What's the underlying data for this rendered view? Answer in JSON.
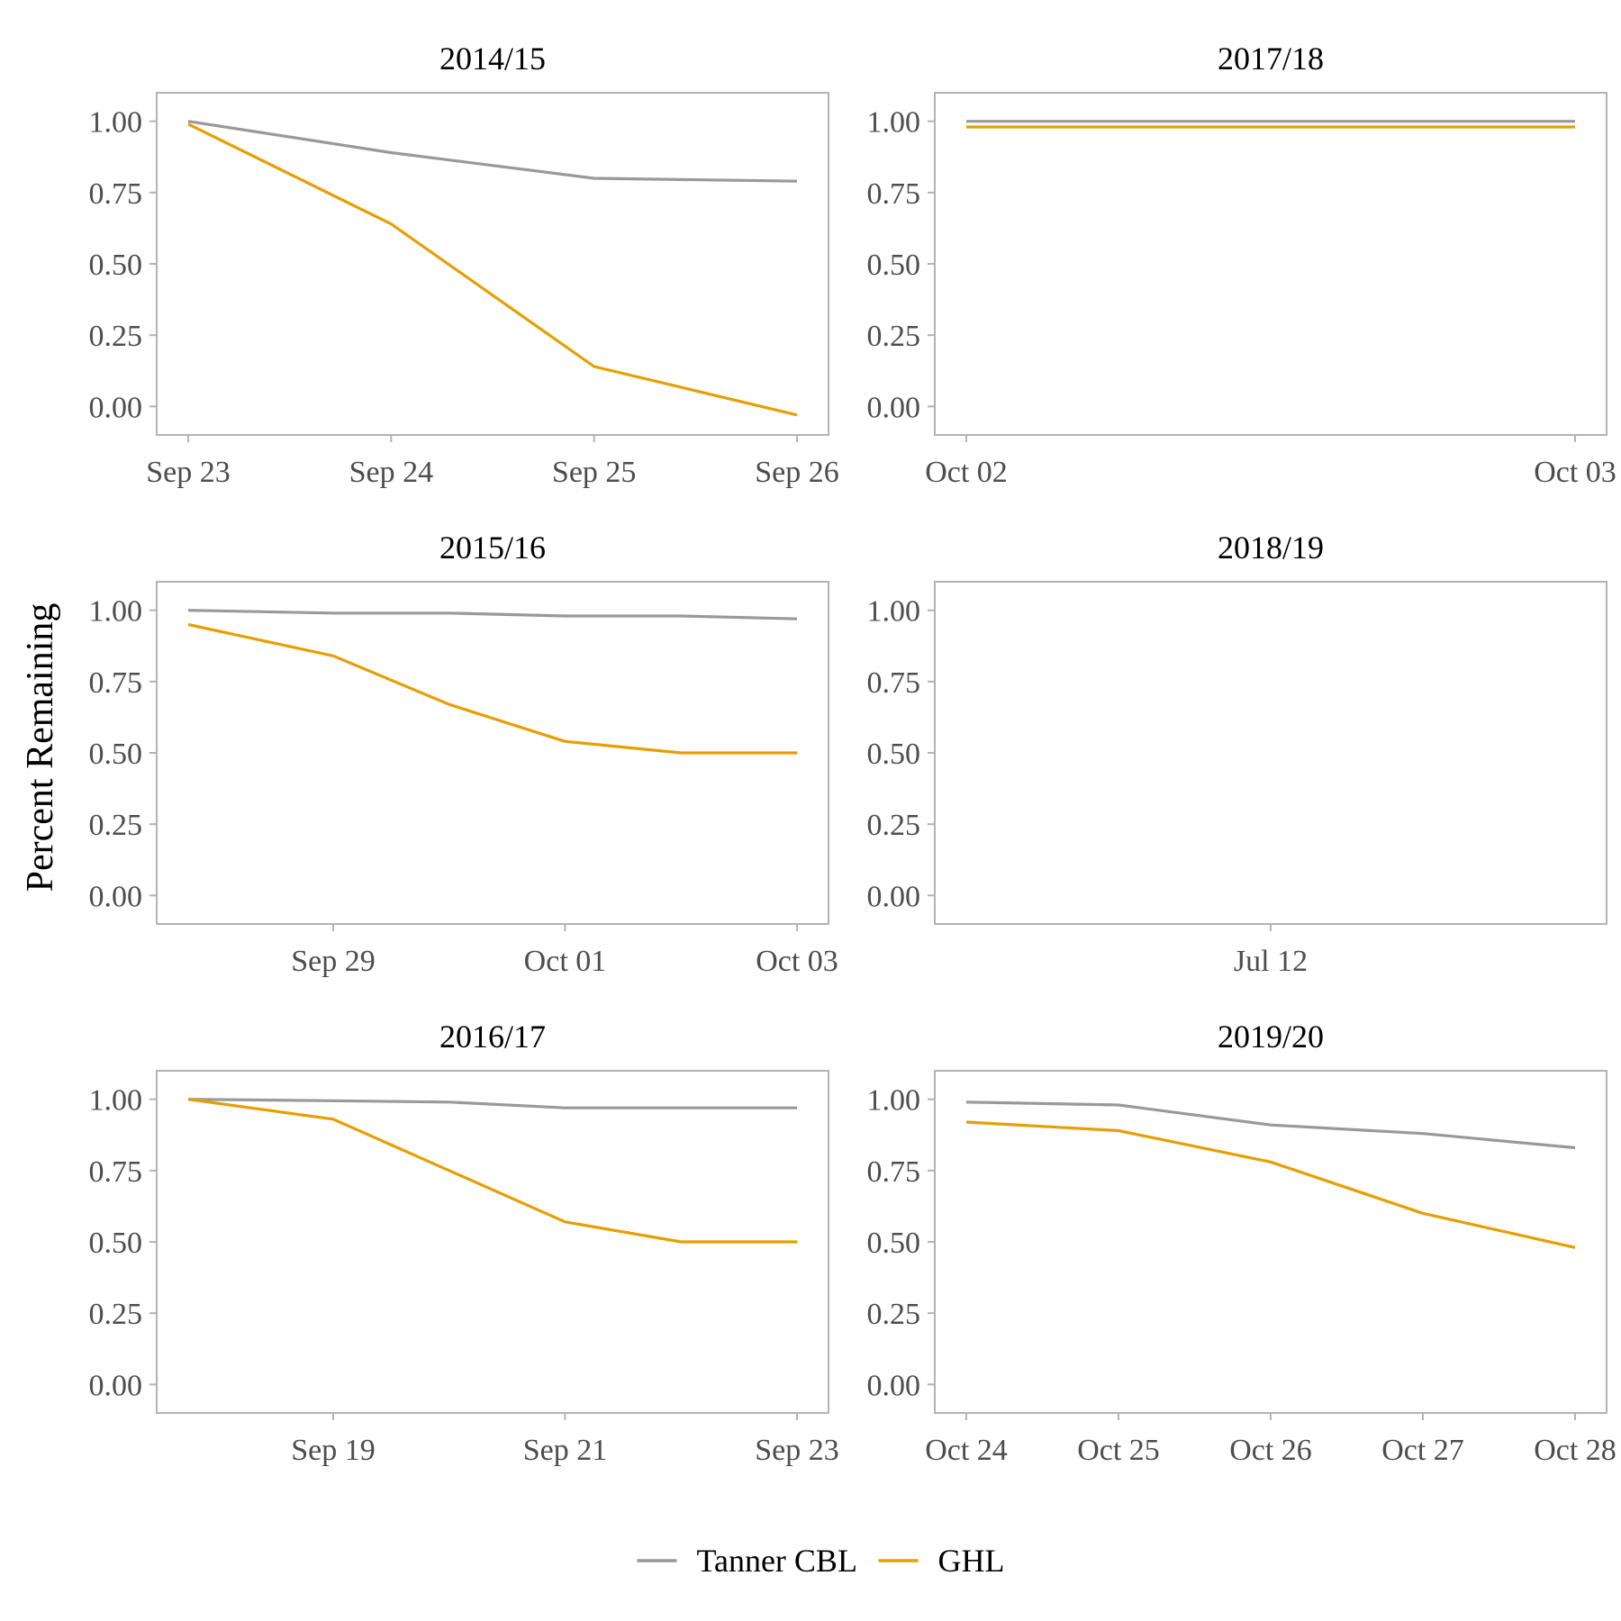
{
  "chart_data": {
    "type": "line",
    "ylabel": "Percent Remaining",
    "ylim": [
      -0.1,
      1.1
    ],
    "yticks": [
      0,
      0.25,
      0.5,
      0.75,
      1
    ],
    "ytick_labels": [
      "0.00",
      "0.25",
      "0.50",
      "0.75",
      "1.00"
    ],
    "series_colors": {
      "Tanner CBL": "#999999",
      "GHL": "#E69F00"
    },
    "legend": {
      "position": "bottom",
      "entries": [
        {
          "name": "Tanner CBL",
          "color": "#999999"
        },
        {
          "name": "GHL",
          "color": "#E69F00"
        }
      ]
    },
    "panels": [
      {
        "title": "2014/15",
        "xlim": [
          0,
          3
        ],
        "xticks": [
          {
            "x": 0,
            "label": "Sep 23"
          },
          {
            "x": 1,
            "label": "Sep 24"
          },
          {
            "x": 2,
            "label": "Sep 25"
          },
          {
            "x": 3,
            "label": "Sep 26"
          }
        ],
        "series": [
          {
            "name": "Tanner CBL",
            "points": [
              [
                0,
                1.0
              ],
              [
                1,
                0.89
              ],
              [
                2,
                0.8
              ],
              [
                3,
                0.79
              ]
            ]
          },
          {
            "name": "GHL",
            "points": [
              [
                0,
                0.99
              ],
              [
                1,
                0.64
              ],
              [
                2,
                0.14
              ],
              [
                3,
                -0.03
              ]
            ]
          }
        ]
      },
      {
        "title": "2017/18",
        "xlim": [
          0,
          1
        ],
        "xticks": [
          {
            "x": 0,
            "label": "Oct 02"
          },
          {
            "x": 1,
            "label": "Oct 03"
          }
        ],
        "series": [
          {
            "name": "Tanner CBL",
            "points": [
              [
                0,
                1.0
              ],
              [
                1,
                1.0
              ]
            ]
          },
          {
            "name": "GHL",
            "points": [
              [
                0,
                0.98
              ],
              [
                1,
                0.98
              ]
            ]
          }
        ]
      },
      {
        "title": "2015/16",
        "xlim": [
          -1.25,
          4
        ],
        "xticks": [
          {
            "x": 0,
            "label": "Sep 29"
          },
          {
            "x": 2,
            "label": "Oct 01"
          },
          {
            "x": 4,
            "label": "Oct 03"
          }
        ],
        "series": [
          {
            "name": "Tanner CBL",
            "points": [
              [
                -1.25,
                1.0
              ],
              [
                0,
                0.99
              ],
              [
                1,
                0.99
              ],
              [
                2,
                0.98
              ],
              [
                3,
                0.98
              ],
              [
                4,
                0.97
              ]
            ]
          },
          {
            "name": "GHL",
            "points": [
              [
                -1.25,
                0.95
              ],
              [
                0,
                0.84
              ],
              [
                1,
                0.67
              ],
              [
                2,
                0.54
              ],
              [
                3,
                0.5
              ],
              [
                4,
                0.5
              ]
            ]
          }
        ]
      },
      {
        "title": "2018/19",
        "xlim": [
          -1,
          1
        ],
        "xticks": [
          {
            "x": 0,
            "label": "Jul 12"
          }
        ],
        "series": []
      },
      {
        "title": "2016/17",
        "xlim": [
          -1.25,
          4
        ],
        "xticks": [
          {
            "x": 0,
            "label": "Sep 19"
          },
          {
            "x": 2,
            "label": "Sep 21"
          },
          {
            "x": 4,
            "label": "Sep 23"
          }
        ],
        "series": [
          {
            "name": "Tanner CBL",
            "points": [
              [
                -1.25,
                1.0
              ],
              [
                0,
                0.995
              ],
              [
                1,
                0.99
              ],
              [
                2,
                0.97
              ],
              [
                3,
                0.97
              ],
              [
                4,
                0.97
              ]
            ]
          },
          {
            "name": "GHL",
            "points": [
              [
                -1.25,
                1.0
              ],
              [
                0,
                0.93
              ],
              [
                1,
                0.75
              ],
              [
                2,
                0.57
              ],
              [
                3,
                0.5
              ],
              [
                4,
                0.5
              ]
            ]
          }
        ]
      },
      {
        "title": "2019/20",
        "xlim": [
          0,
          4
        ],
        "xticks": [
          {
            "x": 0,
            "label": "Oct 24"
          },
          {
            "x": 1,
            "label": "Oct 25"
          },
          {
            "x": 2,
            "label": "Oct 26"
          },
          {
            "x": 3,
            "label": "Oct 27"
          },
          {
            "x": 4,
            "label": "Oct 28"
          }
        ],
        "series": [
          {
            "name": "Tanner CBL",
            "points": [
              [
                0,
                0.99
              ],
              [
                1,
                0.98
              ],
              [
                2,
                0.91
              ],
              [
                3,
                0.88
              ],
              [
                4,
                0.83
              ]
            ]
          },
          {
            "name": "GHL",
            "points": [
              [
                0,
                0.92
              ],
              [
                1,
                0.89
              ],
              [
                2,
                0.78
              ],
              [
                3,
                0.6
              ],
              [
                4,
                0.48
              ]
            ]
          }
        ]
      }
    ]
  }
}
